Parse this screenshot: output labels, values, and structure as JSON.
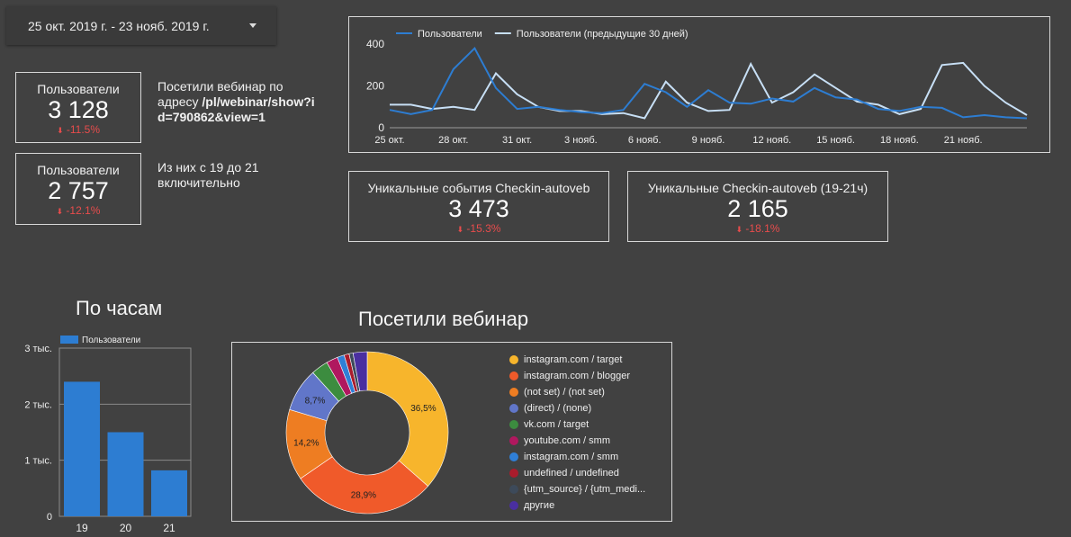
{
  "date_range": {
    "label": "25 окт. 2019 г. - 23 нояб. 2019 г.",
    "icon": "caret-down-icon"
  },
  "scorecards": [
    {
      "label": "Пользователи",
      "value": "3 128",
      "delta": "-11.5%",
      "arrow": "⬇"
    },
    {
      "label": "Пользователи",
      "value": "2 757",
      "delta": "-12.1%",
      "arrow": "⬇"
    },
    {
      "label": "Уникальные события Checkin-autoveb",
      "value": "3 473",
      "delta": "-15.3%",
      "arrow": "⬇"
    },
    {
      "label": "Уникальные Checkin-autoveb (19-21ч)",
      "value": "2 165",
      "delta": "-18.1%",
      "arrow": "⬇"
    }
  ],
  "notes": {
    "visited_prefix": "Посетили вебинар по адресу ",
    "visited_url": "/pl/webinar/show?id=790862&view=1",
    "subset": "Из них с 19 до 21 включительно"
  },
  "colors": {
    "accent_blue": "#2d7dd2",
    "prev_line": "#c7dff5",
    "delta_red": "#e84c4c"
  },
  "chart_data": [
    {
      "type": "line",
      "series": [
        {
          "name": "Пользователи",
          "color": "#2d7dd2",
          "values": [
            85,
            65,
            85,
            280,
            380,
            190,
            90,
            100,
            85,
            75,
            70,
            85,
            210,
            170,
            100,
            180,
            120,
            115,
            140,
            125,
            190,
            145,
            135,
            90,
            80,
            100,
            95,
            50,
            60,
            50,
            45
          ]
        },
        {
          "name": "Пользователи (предыдущие 30 дней)",
          "color": "#c7dff5",
          "values": [
            110,
            110,
            90,
            100,
            85,
            260,
            160,
            100,
            80,
            80,
            65,
            70,
            45,
            220,
            120,
            80,
            85,
            305,
            120,
            170,
            255,
            190,
            125,
            110,
            65,
            90,
            300,
            310,
            200,
            120,
            60
          ]
        }
      ],
      "x_ticks": [
        "25 окт.",
        "28 окт.",
        "31 окт.",
        "3 нояб.",
        "6 нояб.",
        "9 нояб.",
        "12 нояб.",
        "15 нояб.",
        "18 нояб.",
        "21 нояб."
      ],
      "y_ticks": [
        "0",
        "200",
        "400"
      ],
      "ylim": [
        0,
        400
      ],
      "legend_position": "top"
    },
    {
      "type": "bar",
      "title": "По часам",
      "legend": "Пользователи",
      "categories": [
        "19",
        "20",
        "21"
      ],
      "values": [
        2400,
        1500,
        820
      ],
      "y_ticks": [
        "0",
        "1 тыс.",
        "2 тыс.",
        "3 тыс."
      ],
      "ylim": [
        0,
        3000
      ],
      "grid": true
    },
    {
      "type": "pie",
      "title": "Посетили вебинар",
      "slices": [
        {
          "label": "instagram.com / target",
          "value": 36.5,
          "text": "36,5%",
          "color": "#f7b52c"
        },
        {
          "label": "instagram.com / blogger",
          "value": 28.9,
          "text": "28,9%",
          "color": "#f05a2a"
        },
        {
          "label": "(not set) / (not set)",
          "value": 14.2,
          "text": "14,2%",
          "color": "#ee7d22"
        },
        {
          "label": "(direct) / (none)",
          "value": 8.7,
          "text": "8,7%",
          "color": "#6176c9"
        },
        {
          "label": "vk.com / target",
          "value": 3.4,
          "text": "",
          "color": "#3c8c3f"
        },
        {
          "label": "youtube.com / smm",
          "value": 2.3,
          "text": "",
          "color": "#b0185f"
        },
        {
          "label": "instagram.com / smm",
          "value": 1.4,
          "text": "",
          "color": "#2f7fd7"
        },
        {
          "label": "undefined / undefined",
          "value": 1.0,
          "text": "",
          "color": "#a91c2c"
        },
        {
          "label": "{utm_source} / {utm_medi...",
          "value": 0.8,
          "text": "",
          "color": "#3d4a5a"
        },
        {
          "label": "другие",
          "value": 2.8,
          "text": "",
          "color": "#4a2fa0"
        }
      ],
      "legend_position": "right"
    }
  ]
}
